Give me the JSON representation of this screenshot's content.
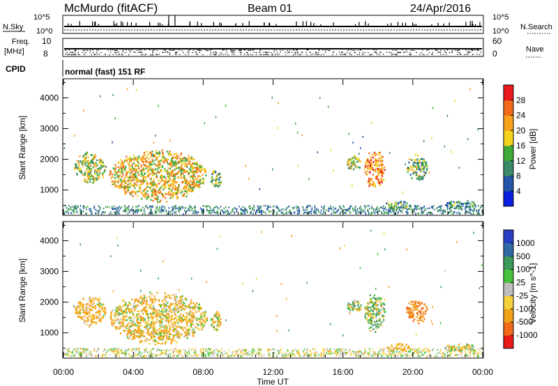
{
  "header": {
    "station": "McMurdo (fitACF)",
    "beam": "Beam 01",
    "date": "24/Apr/2016"
  },
  "strips": {
    "nsky_label": "N.Sky",
    "nsky_ticks": [
      "10^5",
      "10^0"
    ],
    "nsearch_label": "N.Search",
    "freq_label_1": "Freq.",
    "freq_label_2": "[MHz]",
    "freq_ticks": [
      "10",
      "8"
    ],
    "nave_label": "Nave",
    "nave_ticks": [
      "60",
      "0"
    ],
    "cpid_label": "CPID",
    "cpid_text": "normal (fast) 151 RF"
  },
  "x_axis": {
    "label": "Time UT",
    "ticks": [
      "00:00",
      "04:00",
      "08:00",
      "12:00",
      "16:00",
      "20:00",
      "00:00"
    ],
    "range_hours": [
      0,
      24
    ]
  },
  "panels": {
    "power": {
      "ylabel": "Slant Range [km]",
      "yticks": [
        "4000",
        "3000",
        "2000",
        "1000"
      ],
      "colorbar_label": "Power [dB]",
      "colorbar_ticks": [
        "28",
        "24",
        "20",
        "16",
        "12",
        "8",
        "4"
      ]
    },
    "velocity": {
      "ylabel": "Slant Range [km]",
      "yticks": [
        "4000",
        "3000",
        "2000",
        "1000"
      ],
      "colorbar_label": "Velocity [m s^-1]",
      "colorbar_ticks": [
        "1000",
        "500",
        "100",
        "25",
        "-25",
        "-100",
        "-500",
        "-1000"
      ]
    }
  },
  "colors": {
    "power_scale": [
      "#0a1fe0",
      "#2255a8",
      "#3a8a6a",
      "#3faa3a",
      "#f2d21a",
      "#f7a21a",
      "#f06a18",
      "#e8181a"
    ],
    "velocity_scale": [
      "#2a3ec4",
      "#2f6aa6",
      "#3a9a5a",
      "#46c23a",
      "#bdbdbd",
      "#f5d23a",
      "#f2a21a",
      "#f06a1a",
      "#e81a1a"
    ]
  },
  "chart_data": [
    {
      "type": "heatmap",
      "title": "Power",
      "xlabel": "Time UT",
      "ylabel": "Slant Range [km]",
      "xlim": [
        0,
        24
      ],
      "ylim": [
        200,
        4600
      ],
      "zlabel": "Power [dB]",
      "zlim": [
        0,
        32
      ],
      "echo_regions": [
        {
          "t": [
            0.6,
            2.4
          ],
          "range_km": [
            1200,
            2300
          ],
          "value": 16
        },
        {
          "t": [
            2.6,
            8.2
          ],
          "range_km": [
            600,
            2400
          ],
          "value": 20
        },
        {
          "t": [
            8.4,
            9.0
          ],
          "range_km": [
            1000,
            1800
          ],
          "value": 12
        },
        {
          "t": [
            16.2,
            17.0
          ],
          "range_km": [
            1600,
            2200
          ],
          "value": 16
        },
        {
          "t": [
            17.2,
            18.4
          ],
          "range_km": [
            1000,
            2400
          ],
          "value": 24
        },
        {
          "t": [
            19.6,
            20.8
          ],
          "range_km": [
            1300,
            2200
          ],
          "value": 14
        },
        {
          "t": [
            18.4,
            19.8
          ],
          "range_km": [
            400,
            700
          ],
          "value": 12
        },
        {
          "t": [
            21.8,
            23.6
          ],
          "range_km": [
            400,
            700
          ],
          "value": 10
        }
      ]
    },
    {
      "type": "heatmap",
      "title": "Velocity",
      "xlabel": "Time UT",
      "ylabel": "Slant Range [km]",
      "xlim": [
        0,
        24
      ],
      "ylim": [
        200,
        4600
      ],
      "zlabel": "Velocity [m s^-1]",
      "zlim": [
        -1000,
        1000
      ],
      "echo_regions": [
        {
          "t": [
            0.6,
            2.4
          ],
          "range_km": [
            1200,
            2300
          ],
          "value": -200
        },
        {
          "t": [
            2.6,
            8.2
          ],
          "range_km": [
            600,
            2400
          ],
          "value": -150
        },
        {
          "t": [
            8.4,
            9.0
          ],
          "range_km": [
            1000,
            1800
          ],
          "value": -100
        },
        {
          "t": [
            16.2,
            17.0
          ],
          "range_km": [
            1600,
            2200
          ],
          "value": 100
        },
        {
          "t": [
            17.2,
            18.4
          ],
          "range_km": [
            1000,
            2400
          ],
          "value": 50
        },
        {
          "t": [
            19.6,
            20.8
          ],
          "range_km": [
            1300,
            2200
          ],
          "value": -500
        },
        {
          "t": [
            18.4,
            19.8
          ],
          "range_km": [
            400,
            700
          ],
          "value": -300
        },
        {
          "t": [
            21.8,
            23.6
          ],
          "range_km": [
            400,
            700
          ],
          "value": -50
        }
      ]
    }
  ]
}
